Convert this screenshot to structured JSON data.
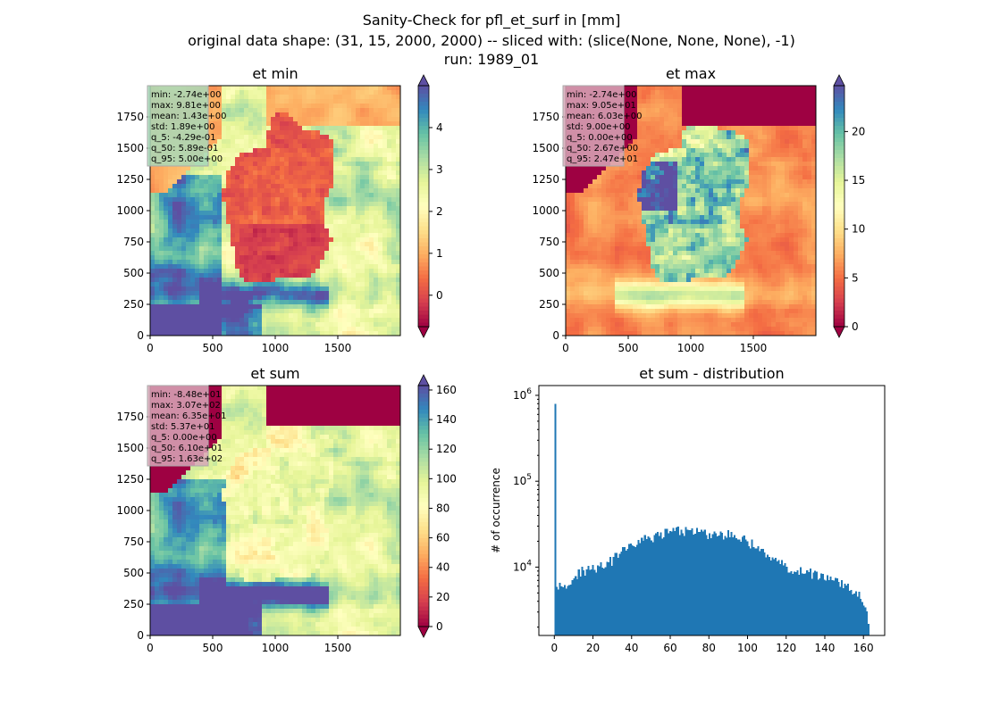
{
  "figure": {
    "title_lines": [
      "Sanity-Check for pfl_et_surf in [mm]",
      "original data shape: (31, 15, 2000, 2000) -- sliced with: (slice(None, None, None), -1)",
      "run: 1989_01"
    ]
  },
  "chart_data": [
    {
      "type": "heatmap",
      "title": "et min",
      "xlim": [
        0,
        2000
      ],
      "ylim": [
        0,
        2000
      ],
      "x_ticks": [
        0,
        500,
        1000,
        1500
      ],
      "y_ticks": [
        0,
        250,
        500,
        750,
        1000,
        1250,
        1500,
        1750
      ],
      "colormap": "Spectral",
      "colorbar": {
        "vmin": -0.75,
        "vmax": 5.0,
        "ticks": [
          0,
          1,
          2,
          3,
          4
        ],
        "extend": "both"
      },
      "stats": [
        "min: -2.74e+00",
        "max: 9.81e+00",
        "mean: 1.43e+00",
        "std: 1.89e+00",
        "q_5: -4.29e-01",
        "q_50: 5.89e-01",
        "q_95: 5.00e+00"
      ],
      "stats_box_color": "#a8d8b8"
    },
    {
      "type": "heatmap",
      "title": "et max",
      "xlim": [
        0,
        2000
      ],
      "ylim": [
        0,
        2000
      ],
      "x_ticks": [
        0,
        500,
        1000,
        1500
      ],
      "y_ticks": [
        0,
        250,
        500,
        750,
        1000,
        1250,
        1500,
        1750
      ],
      "colormap": "Spectral",
      "colorbar": {
        "vmin": 0,
        "vmax": 24.7,
        "ticks": [
          0,
          5,
          10,
          15,
          20
        ],
        "extend": "both"
      },
      "stats": [
        "min: -2.74e+00",
        "max: 9.05e+01",
        "mean: 6.03e+00",
        "std: 9.00e+00",
        "q_5: 0.00e+00",
        "q_50: 2.67e+00",
        "q_95: 2.47e+01"
      ],
      "stats_box_color": "#d8a8b8"
    },
    {
      "type": "heatmap",
      "title": "et sum",
      "xlim": [
        0,
        2000
      ],
      "ylim": [
        0,
        2000
      ],
      "x_ticks": [
        0,
        500,
        1000,
        1500
      ],
      "y_ticks": [
        0,
        250,
        500,
        750,
        1000,
        1250,
        1500,
        1750
      ],
      "colormap": "Spectral",
      "colorbar": {
        "vmin": 0,
        "vmax": 163,
        "ticks": [
          0,
          20,
          40,
          60,
          80,
          100,
          120,
          140,
          160
        ],
        "extend": "both"
      },
      "stats": [
        "min: -8.48e+01",
        "max: 3.07e+02",
        "mean: 6.35e+01",
        "std: 5.37e+01",
        "q_5: 0.00e+00",
        "q_50: 6.10e+01",
        "q_95: 1.63e+02"
      ],
      "stats_box_color": "#d8a8b8"
    },
    {
      "type": "bar",
      "title": "et sum - distribution",
      "xlabel": "",
      "ylabel": "# of occurrence",
      "yscale": "log",
      "xlim": [
        -8,
        171
      ],
      "ylim": [
        1600,
        1300000
      ],
      "x_ticks": [
        0,
        20,
        40,
        60,
        80,
        100,
        120,
        140,
        160
      ],
      "y_ticks": [
        {
          "value": 10000,
          "base": "10",
          "exp": "4"
        },
        {
          "value": 100000,
          "base": "10",
          "exp": "5"
        },
        {
          "value": 1000000,
          "base": "10",
          "exp": "6"
        }
      ],
      "bar_color": "#1f77b4",
      "peak": {
        "x": 0,
        "count": 800000
      },
      "bin_start": 0,
      "bin_end": 163,
      "bins": 200,
      "anchors": [
        [
          1,
          6500
        ],
        [
          3,
          6200
        ],
        [
          5,
          6600
        ],
        [
          8,
          6000
        ],
        [
          10,
          7600
        ],
        [
          14,
          8800
        ],
        [
          20,
          9800
        ],
        [
          25,
          10200
        ],
        [
          30,
          12000
        ],
        [
          35,
          15000
        ],
        [
          40,
          18000
        ],
        [
          45,
          20000
        ],
        [
          50,
          22000
        ],
        [
          55,
          24000
        ],
        [
          60,
          26000
        ],
        [
          65,
          26500
        ],
        [
          70,
          26000
        ],
        [
          75,
          25000
        ],
        [
          80,
          24000
        ],
        [
          85,
          23500
        ],
        [
          90,
          24000
        ],
        [
          95,
          23000
        ],
        [
          100,
          20000
        ],
        [
          105,
          17000
        ],
        [
          110,
          14000
        ],
        [
          115,
          11500
        ],
        [
          120,
          10000
        ],
        [
          125,
          9200
        ],
        [
          130,
          8800
        ],
        [
          135,
          8200
        ],
        [
          140,
          7600
        ],
        [
          145,
          7000
        ],
        [
          150,
          6000
        ],
        [
          155,
          5200
        ],
        [
          158,
          4700
        ],
        [
          160,
          3800
        ],
        [
          162,
          2600
        ],
        [
          163,
          1800
        ]
      ]
    }
  ]
}
